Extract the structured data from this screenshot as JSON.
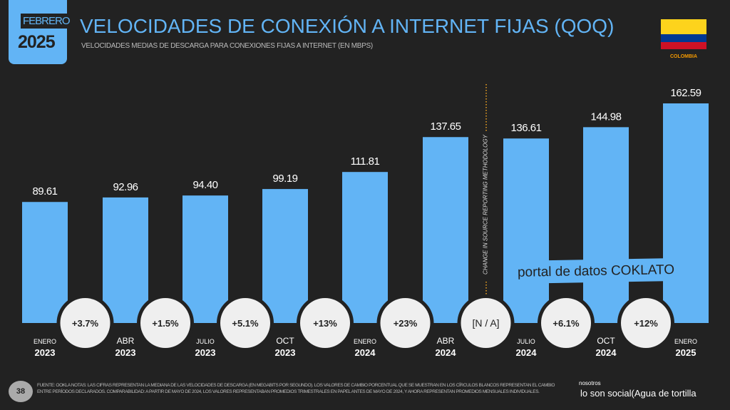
{
  "header": {
    "badge_month": "FEBRERO",
    "badge_year": "2025",
    "title": "VELOCIDADES DE CONEXIÓN A INTERNET FIJAS (QOQ)",
    "subtitle": "VELOCIDADES MEDIAS DE DESCARGA PARA CONEXIONES FIJAS A INTERNET (EN MBPS)",
    "country": "COLOMBIA"
  },
  "flag_colors": [
    "#fdd31c",
    "#003893",
    "#ce1126"
  ],
  "chart_data": {
    "type": "bar",
    "title": "VELOCIDADES DE CONEXIÓN A INTERNET FIJAS (QOQ)",
    "ylabel": "",
    "categories": [
      {
        "month": "ENERO",
        "year": "2023"
      },
      {
        "month": "ABR",
        "year": "2023"
      },
      {
        "month": "JULIO",
        "year": "2023"
      },
      {
        "month": "OCT",
        "year": "2023"
      },
      {
        "month": "ENERO",
        "year": "2024"
      },
      {
        "month": "ABR",
        "year": "2024"
      },
      {
        "month": "JULIO",
        "year": "2024"
      },
      {
        "month": "OCT",
        "year": "2024"
      },
      {
        "month": "ENERO",
        "year": "2025"
      }
    ],
    "values": [
      89.61,
      92.96,
      94.4,
      99.19,
      111.81,
      137.65,
      136.61,
      144.98,
      162.59
    ],
    "value_labels": [
      "89.61",
      "92.96",
      "94.40",
      "99.19",
      "111.81",
      "137.65",
      "136.61",
      "144.98",
      "162.59"
    ],
    "changes": [
      "+3.7%",
      "+1.5%",
      "+5.1%",
      "+13%",
      "+23%",
      "[N / A]",
      "+6.1%",
      "+12%"
    ],
    "ylim": [
      0,
      162.59
    ],
    "grid": false,
    "bar_color": "#62b4f5",
    "divider_label": "CHANGE IN SOURCE REPORTING METHODOLOGY"
  },
  "watermark": "portal de datos COKLATO",
  "footer": {
    "page": "38",
    "text": "FUENTE: OOKLA NOTAS: LAS CIFRAS REPRESENTAN LA MEDIANA DE LAS VELOCIDADES DE DESCARGA (EN MEGABITS POR SEGUNDO). LOS VALORES DE CAMBIO PORCENTUAL QUE SE MUESTRAN EN LOS CÍRCULOS BLANCOS REPRESENTAN EL CAMBIO ENTRE PERÍODOS DECLARADOS. COMPARABILIDAD: A PARTIR DE MAYO DE 2024, LOS VALORES REPRESENTABAN PROMEDIOS TRIMESTRALES EN PAPEL ANTES DE MAYO DE 2024, Y AHORA REPRESENTAN PROMEDIOS MENSUALES INDIVIDUALES.",
    "logo_top": "nosotros",
    "logo_bottom": "lo son social(Agua de tortilla"
  }
}
